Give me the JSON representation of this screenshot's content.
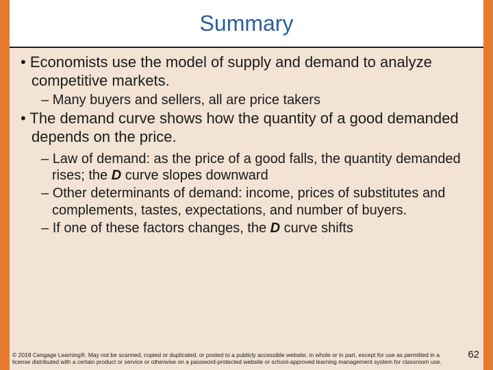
{
  "title": "Summary",
  "bullets": [
    {
      "level": 1,
      "text": "Economists use the model of supply and demand to analyze competitive markets."
    },
    {
      "level": 2,
      "text": "Many buyers and sellers, all are price takers"
    },
    {
      "level": 1,
      "text": "The demand curve shows how the quantity of a good demanded depends on the price."
    },
    {
      "level": 2,
      "html": "Law of demand: as the price of a good falls, the quantity demanded rises; the <span class='bold-i'>D</span> curve slopes downward"
    },
    {
      "level": 2,
      "text": "Other determinants of demand: income, prices of substitutes and complements, tastes, expectations, and number of buyers."
    },
    {
      "level": 2,
      "html": "If one of these factors changes, the <span class='bold-i'>D</span> curve shifts"
    }
  ],
  "footer": "© 2018 Cengage Learning®. May not be scanned, copied or duplicated, or posted to a publicly accessible website, in whole or in part, except for use as permitted in a license distributed with a certain product or service or otherwise on a password-protected website or school-approved learning management system for classroom use.",
  "page_number": "62",
  "colors": {
    "accent_orange": "#e67a2e",
    "background": "#f2e3d5",
    "title_blue": "#2a5f9e",
    "text": "#1a1a1a",
    "title_bg": "#ffffff"
  }
}
